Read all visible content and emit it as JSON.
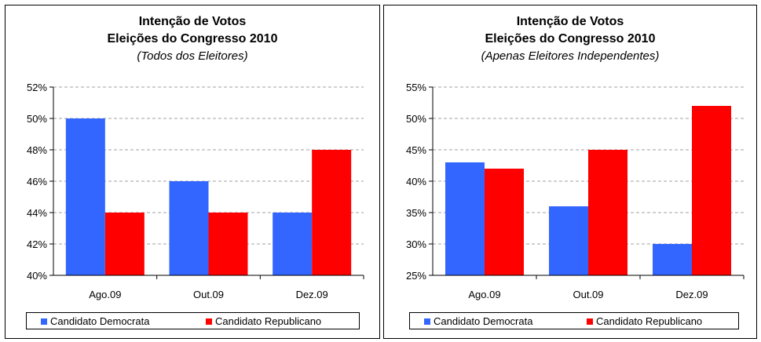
{
  "colors": {
    "democrat": "#3366ff",
    "republican": "#ff0000",
    "grid": "#a0a0a0"
  },
  "chart_data": [
    {
      "type": "bar",
      "title": "Intenção de Votos",
      "title2": "Eleições do Congresso 2010",
      "subtitle": "(Todos dos Eleitores)",
      "categories": [
        "Ago.09",
        "Out.09",
        "Dez.09"
      ],
      "series": [
        {
          "name": "Candidato Democrata",
          "values": [
            50,
            46,
            44
          ]
        },
        {
          "name": "Candidato Republicano",
          "values": [
            44,
            44,
            48
          ]
        }
      ],
      "ylim": [
        40,
        52
      ],
      "yticks": [
        40,
        42,
        44,
        46,
        48,
        50,
        52
      ],
      "ytick_labels": [
        "40%",
        "42%",
        "44%",
        "46%",
        "48%",
        "50%",
        "52%"
      ],
      "grid": true,
      "legend": "bottom"
    },
    {
      "type": "bar",
      "title": "Intenção de Votos",
      "title2": "Eleições do Congresso 2010",
      "subtitle": "(Apenas Eleitores Independentes)",
      "categories": [
        "Ago.09",
        "Out.09",
        "Dez.09"
      ],
      "series": [
        {
          "name": "Candidato Democrata",
          "values": [
            43,
            36,
            30
          ]
        },
        {
          "name": "Candidato Republicano",
          "values": [
            42,
            45,
            52
          ]
        }
      ],
      "ylim": [
        25,
        55
      ],
      "yticks": [
        25,
        30,
        35,
        40,
        45,
        50,
        55
      ],
      "ytick_labels": [
        "25%",
        "30%",
        "35%",
        "40%",
        "45%",
        "50%",
        "55%"
      ],
      "grid": true,
      "legend": "bottom"
    }
  ]
}
